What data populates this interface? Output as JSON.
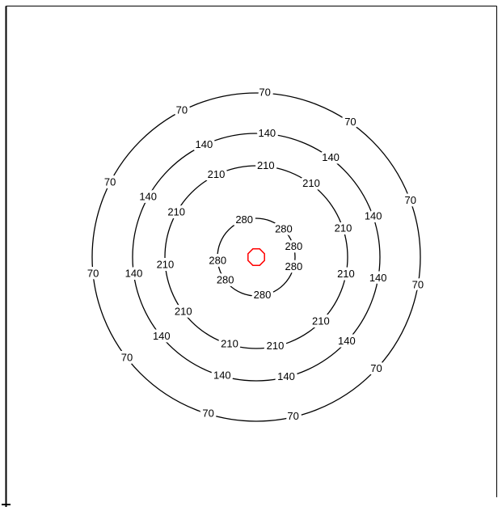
{
  "chart_data": {
    "type": "contour",
    "levels": [
      70,
      140,
      210,
      280
    ],
    "color": "#000000",
    "marker_color": "#ff0000"
  }
}
